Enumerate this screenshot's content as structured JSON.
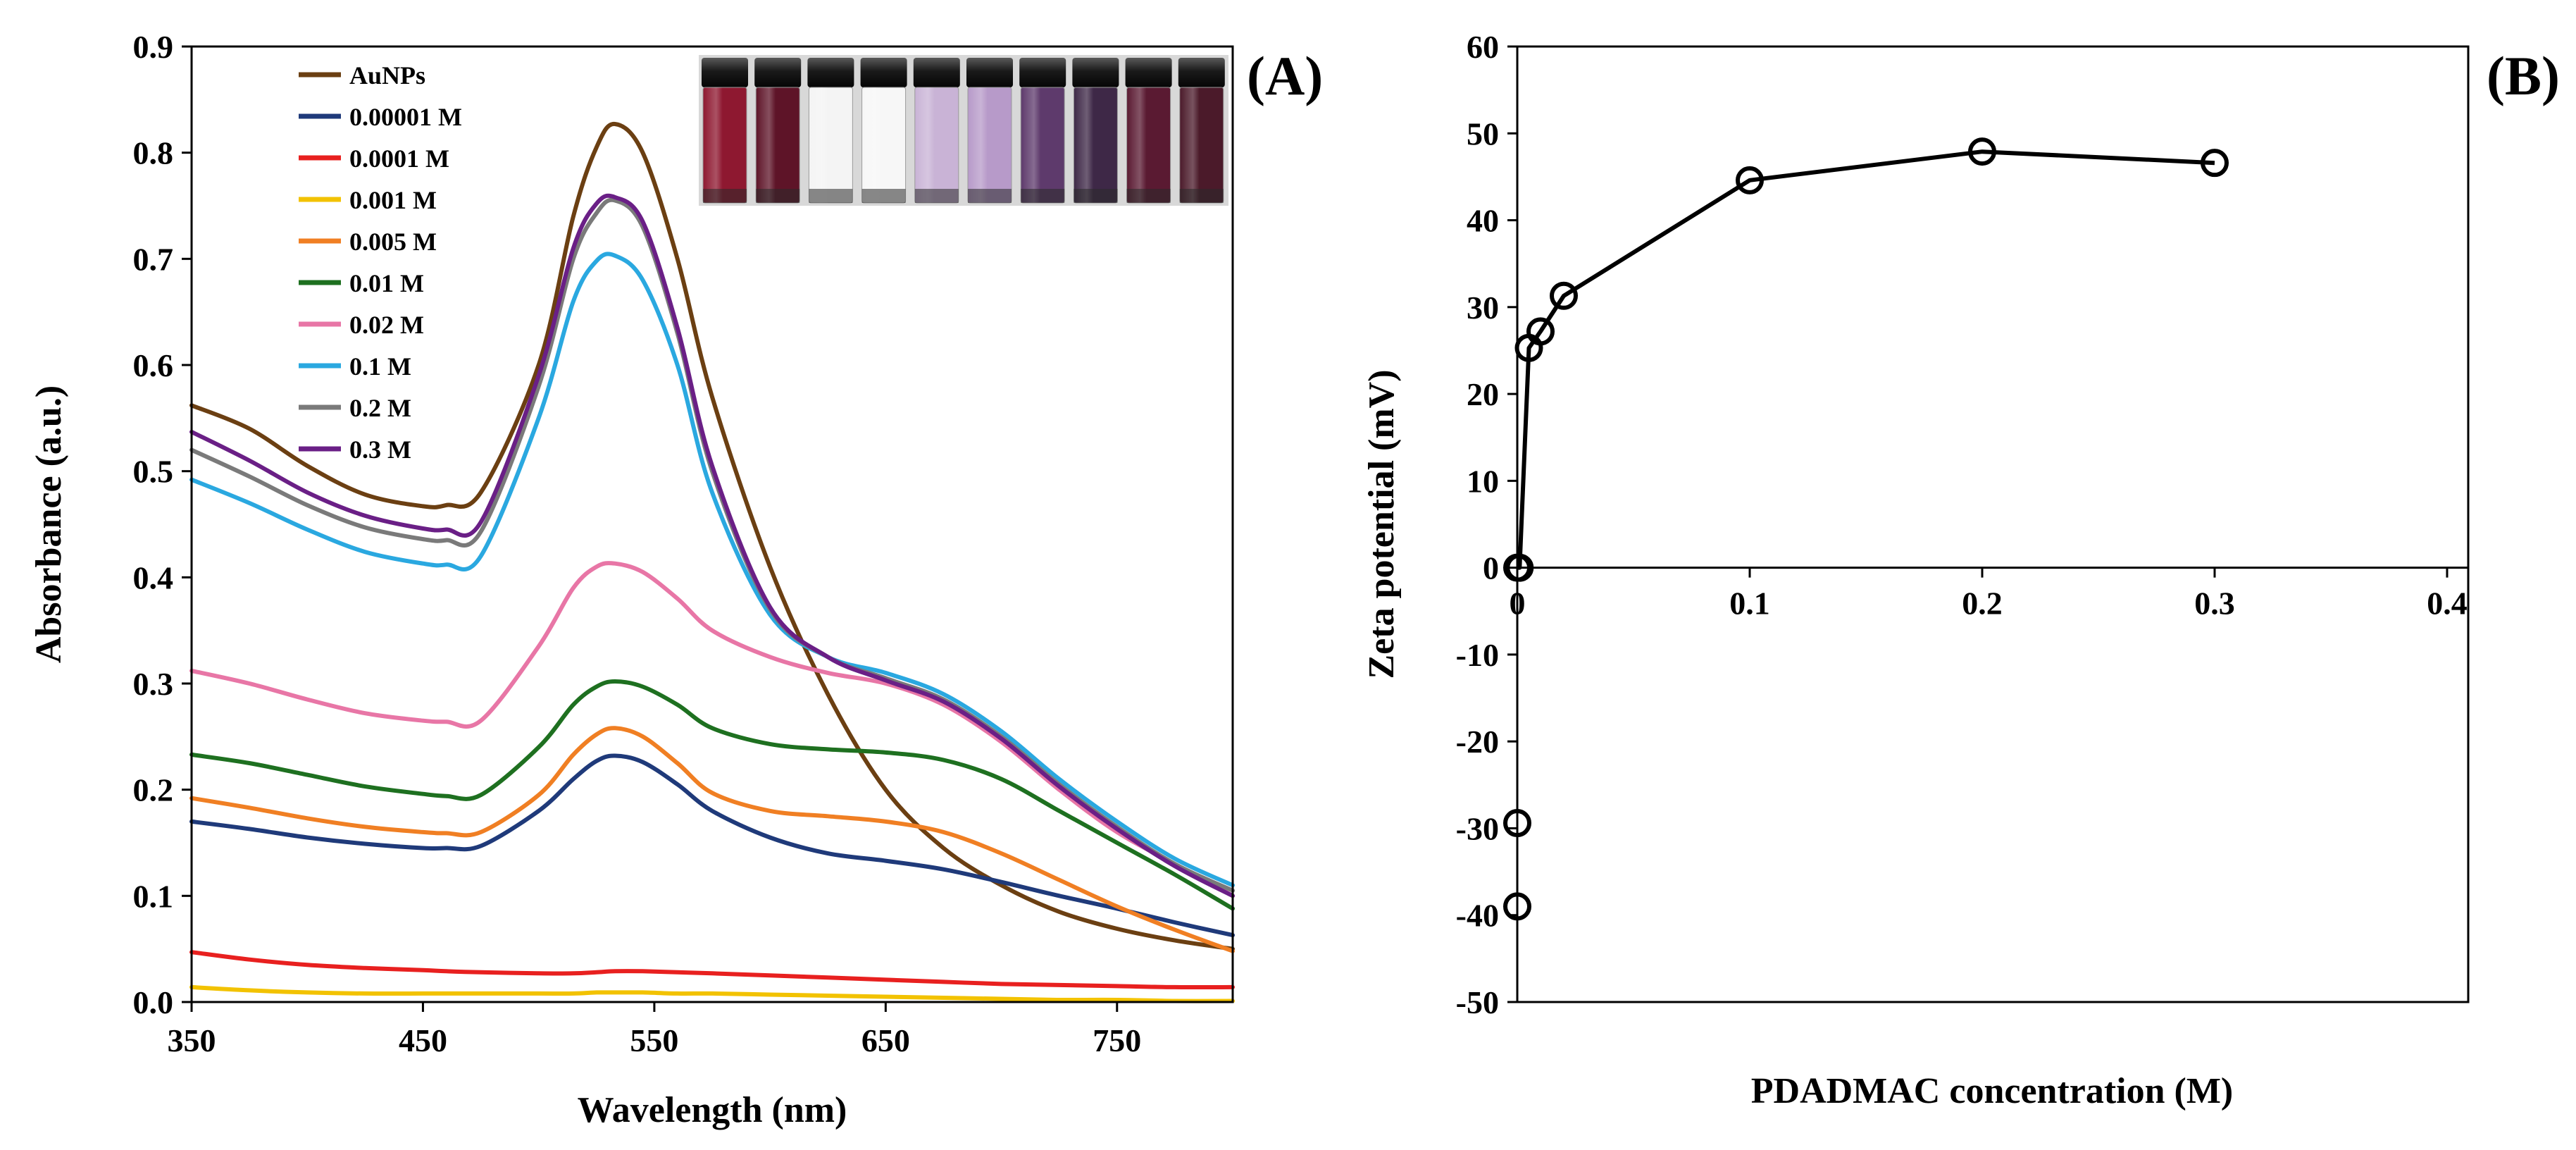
{
  "chart_data": [
    {
      "type": "line",
      "panel_label": "(A)",
      "title": "",
      "xlabel": "Wavelength (nm)",
      "ylabel": "Absorbance (a.u.)",
      "xlim": [
        350,
        800
      ],
      "ylim": [
        0,
        0.9
      ],
      "xticks": [
        350,
        450,
        550,
        650,
        750
      ],
      "yticks": [
        "0.0",
        "0.1",
        "0.2",
        "0.3",
        "0.4",
        "0.5",
        "0.6",
        "0.7",
        "0.8",
        "0.9"
      ],
      "legend_position": "top-left",
      "inset": "photo of ten sample vials",
      "x": [
        350,
        375,
        400,
        425,
        450,
        460,
        475,
        500,
        515,
        525,
        533,
        545,
        560,
        575,
        600,
        625,
        650,
        675,
        700,
        725,
        750,
        775,
        800
      ],
      "series": [
        {
          "name": "AuNPs",
          "color": "#6b3f12",
          "values": [
            0.562,
            0.54,
            0.505,
            0.478,
            0.467,
            0.468,
            0.48,
            0.6,
            0.74,
            0.805,
            0.827,
            0.8,
            0.7,
            0.57,
            0.41,
            0.29,
            0.2,
            0.145,
            0.11,
            0.085,
            0.069,
            0.058,
            0.05
          ]
        },
        {
          "name": "0.00001 M",
          "color": "#1f3a7a",
          "values": [
            0.17,
            0.163,
            0.155,
            0.149,
            0.145,
            0.145,
            0.147,
            0.18,
            0.21,
            0.227,
            0.232,
            0.226,
            0.205,
            0.18,
            0.155,
            0.14,
            0.133,
            0.125,
            0.113,
            0.1,
            0.088,
            0.075,
            0.063
          ]
        },
        {
          "name": "0.0001 M",
          "color": "#e8201f",
          "values": [
            0.047,
            0.04,
            0.035,
            0.032,
            0.03,
            0.029,
            0.028,
            0.027,
            0.027,
            0.028,
            0.029,
            0.029,
            0.028,
            0.027,
            0.025,
            0.023,
            0.021,
            0.019,
            0.017,
            0.016,
            0.015,
            0.014,
            0.014
          ]
        },
        {
          "name": "0.001 M",
          "color": "#f2c200",
          "values": [
            0.014,
            0.011,
            0.009,
            0.008,
            0.008,
            0.008,
            0.008,
            0.008,
            0.008,
            0.009,
            0.009,
            0.009,
            0.008,
            0.008,
            0.007,
            0.006,
            0.005,
            0.004,
            0.003,
            0.002,
            0.002,
            0.001,
            0.001
          ]
        },
        {
          "name": "0.005 M",
          "color": "#f07f23",
          "values": [
            0.192,
            0.183,
            0.173,
            0.165,
            0.16,
            0.159,
            0.16,
            0.195,
            0.233,
            0.252,
            0.258,
            0.25,
            0.225,
            0.197,
            0.18,
            0.175,
            0.17,
            0.16,
            0.14,
            0.115,
            0.09,
            0.068,
            0.048
          ]
        },
        {
          "name": "0.01 M",
          "color": "#1e7020",
          "values": [
            0.233,
            0.225,
            0.214,
            0.203,
            0.196,
            0.194,
            0.195,
            0.24,
            0.28,
            0.297,
            0.302,
            0.297,
            0.28,
            0.258,
            0.243,
            0.238,
            0.235,
            0.228,
            0.21,
            0.18,
            0.15,
            0.12,
            0.088
          ]
        },
        {
          "name": "0.02 M",
          "color": "#e876a6",
          "values": [
            0.312,
            0.3,
            0.285,
            0.272,
            0.265,
            0.264,
            0.265,
            0.335,
            0.39,
            0.41,
            0.413,
            0.405,
            0.38,
            0.35,
            0.325,
            0.31,
            0.3,
            0.28,
            0.245,
            0.2,
            0.16,
            0.13,
            0.1
          ]
        },
        {
          "name": "0.1 M",
          "color": "#2aa8e0",
          "values": [
            0.492,
            0.47,
            0.445,
            0.424,
            0.413,
            0.412,
            0.42,
            0.55,
            0.66,
            0.698,
            0.703,
            0.68,
            0.6,
            0.48,
            0.365,
            0.325,
            0.31,
            0.29,
            0.255,
            0.21,
            0.17,
            0.135,
            0.11
          ]
        },
        {
          "name": "0.2 M",
          "color": "#7a7a7a",
          "values": [
            0.52,
            0.495,
            0.468,
            0.447,
            0.436,
            0.435,
            0.443,
            0.58,
            0.7,
            0.743,
            0.755,
            0.73,
            0.63,
            0.5,
            0.37,
            0.325,
            0.305,
            0.285,
            0.25,
            0.205,
            0.165,
            0.13,
            0.105
          ]
        },
        {
          "name": "0.3 M",
          "color": "#6a1f86",
          "values": [
            0.537,
            0.51,
            0.48,
            0.458,
            0.446,
            0.445,
            0.452,
            0.59,
            0.71,
            0.752,
            0.758,
            0.735,
            0.635,
            0.505,
            0.372,
            0.325,
            0.303,
            0.283,
            0.248,
            0.203,
            0.163,
            0.128,
            0.1
          ]
        }
      ]
    },
    {
      "type": "line",
      "panel_label": "(B)",
      "title": "",
      "xlabel": "PDADMAC concentration (M)",
      "ylabel": "Zeta potential (mV)",
      "xlim": [
        0,
        0.4
      ],
      "ylim": [
        -50,
        60
      ],
      "xticks": [
        "0",
        "0.1",
        "0.2",
        "0.3",
        "0.4"
      ],
      "yticks": [
        "-50",
        "-40",
        "-30",
        "-20",
        "-10",
        "0",
        "10",
        "20",
        "30",
        "40",
        "50",
        "60"
      ],
      "series": [
        {
          "name": "Zeta potential",
          "color": "#000000",
          "marker": "open-circle",
          "x": [
            0,
            0.001,
            0.005,
            0.01,
            0.02,
            0.1,
            0.2,
            0.3
          ],
          "values": [
            0,
            0,
            25.3,
            27.2,
            31.3,
            44.6,
            47.9,
            46.6
          ]
        }
      ],
      "unconnected_points": {
        "x": [
          0,
          0
        ],
        "values": [
          -29.4,
          -39
        ]
      }
    }
  ]
}
